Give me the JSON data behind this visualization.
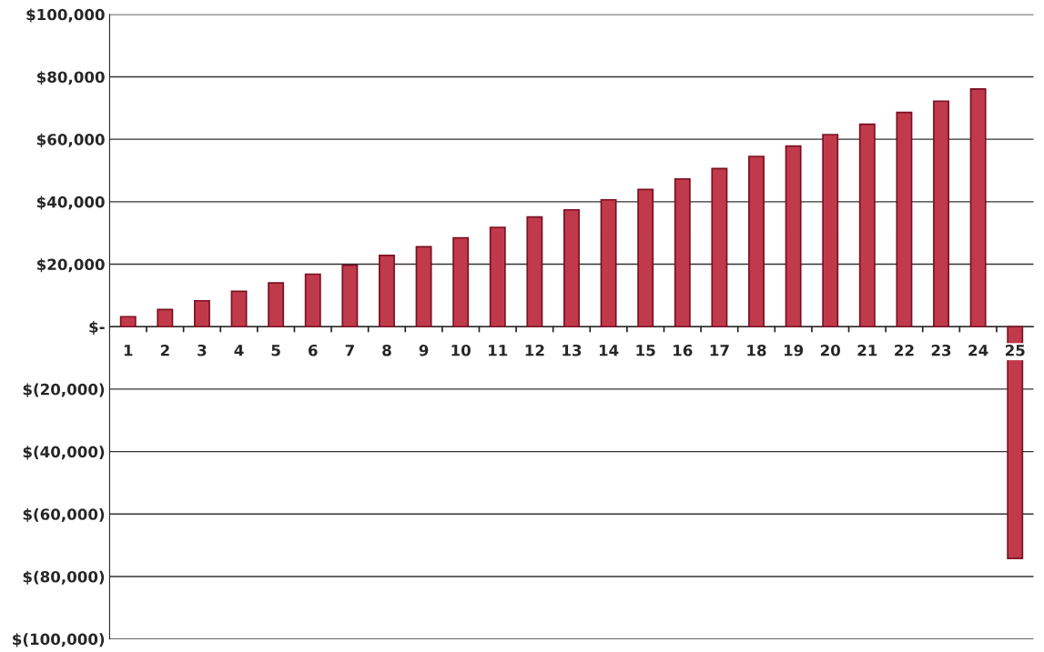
{
  "chart_data": {
    "type": "bar",
    "categories": [
      "1",
      "2",
      "3",
      "4",
      "5",
      "6",
      "7",
      "8",
      "9",
      "10",
      "11",
      "12",
      "13",
      "14",
      "15",
      "16",
      "17",
      "18",
      "19",
      "20",
      "21",
      "22",
      "23",
      "24",
      "25"
    ],
    "values": [
      3200,
      5500,
      8300,
      11300,
      14000,
      16800,
      19700,
      22800,
      25600,
      28400,
      31800,
      35100,
      37400,
      40600,
      43900,
      47300,
      50600,
      54500,
      57800,
      61500,
      64800,
      68600,
      72200,
      76100,
      -74200
    ],
    "color": "#c03a4c",
    "ylim": [
      -100000,
      100000
    ],
    "yticks": [
      {
        "value": 100000,
        "label": "$100,000"
      },
      {
        "value": 80000,
        "label": "$80,000"
      },
      {
        "value": 60000,
        "label": "$60,000"
      },
      {
        "value": 40000,
        "label": "$40,000"
      },
      {
        "value": 20000,
        "label": "$20,000"
      },
      {
        "value": 0,
        "label": "$-"
      },
      {
        "value": -20000,
        "label": "$(20,000)"
      },
      {
        "value": -40000,
        "label": "$(40,000)"
      },
      {
        "value": -60000,
        "label": "$(60,000)"
      },
      {
        "value": -80000,
        "label": "$(80,000)"
      },
      {
        "value": -100000,
        "label": "$(100,000)"
      }
    ],
    "grid": "y"
  }
}
